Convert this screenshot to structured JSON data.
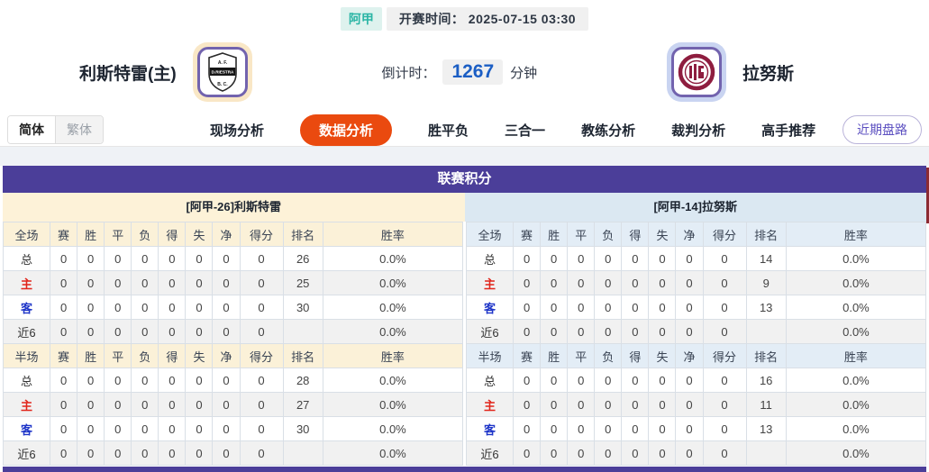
{
  "match_header": {
    "league_badge": "阿甲",
    "kickoff_label": "开赛时间：",
    "kickoff_time": "2025-07-15 03:30",
    "home": {
      "name": "利斯特雷(主)",
      "logo_text": "D.RIESTRA",
      "logo_top": "A.F.",
      "logo_bottom": "B.C."
    },
    "away": {
      "name": "拉努斯"
    },
    "countdown_label": "倒计时：",
    "countdown_value": "1267",
    "countdown_unit": "分钟"
  },
  "nav": {
    "lang_toggle": {
      "simplified": "简体",
      "traditional": "繁体"
    },
    "tabs": [
      {
        "label": "现场分析",
        "active": false
      },
      {
        "label": "数据分析",
        "active": true
      },
      {
        "label": "胜平负",
        "active": false
      },
      {
        "label": "三合一",
        "active": false
      },
      {
        "label": "教练分析",
        "active": false
      },
      {
        "label": "裁判分析",
        "active": false
      },
      {
        "label": "高手推荐",
        "active": false
      }
    ],
    "recent_trend_button": "近期盘路"
  },
  "standings": {
    "title": "联赛积分",
    "left": {
      "subtitle": "[阿甲-26]利斯特雷",
      "sections": [
        {
          "columns": [
            "全场",
            "赛",
            "胜",
            "平",
            "负",
            "得",
            "失",
            "净",
            "得分",
            "排名",
            "胜率"
          ],
          "rows": [
            {
              "label": "总",
              "style": "total",
              "stats": [
                "0",
                "0",
                "0",
                "0",
                "0",
                "0",
                "0",
                "0"
              ],
              "rank": "26",
              "rate": "0.0%"
            },
            {
              "label": "主",
              "style": "home",
              "stats": [
                "0",
                "0",
                "0",
                "0",
                "0",
                "0",
                "0",
                "0"
              ],
              "rank": "25",
              "rate": "0.0%"
            },
            {
              "label": "客",
              "style": "away",
              "stats": [
                "0",
                "0",
                "0",
                "0",
                "0",
                "0",
                "0",
                "0"
              ],
              "rank": "30",
              "rate": "0.0%"
            },
            {
              "label": "近6",
              "style": "recent",
              "stats": [
                "0",
                "0",
                "0",
                "0",
                "0",
                "0",
                "0",
                "0"
              ],
              "rank": "",
              "rate": "0.0%"
            }
          ]
        },
        {
          "columns": [
            "半场",
            "赛",
            "胜",
            "平",
            "负",
            "得",
            "失",
            "净",
            "得分",
            "排名",
            "胜率"
          ],
          "rows": [
            {
              "label": "总",
              "style": "total",
              "stats": [
                "0",
                "0",
                "0",
                "0",
                "0",
                "0",
                "0",
                "0"
              ],
              "rank": "28",
              "rate": "0.0%"
            },
            {
              "label": "主",
              "style": "home",
              "stats": [
                "0",
                "0",
                "0",
                "0",
                "0",
                "0",
                "0",
                "0"
              ],
              "rank": "27",
              "rate": "0.0%"
            },
            {
              "label": "客",
              "style": "away",
              "stats": [
                "0",
                "0",
                "0",
                "0",
                "0",
                "0",
                "0",
                "0"
              ],
              "rank": "30",
              "rate": "0.0%"
            },
            {
              "label": "近6",
              "style": "recent",
              "stats": [
                "0",
                "0",
                "0",
                "0",
                "0",
                "0",
                "0",
                "0"
              ],
              "rank": "",
              "rate": "0.0%"
            }
          ]
        }
      ]
    },
    "right": {
      "subtitle": "[阿甲-14]拉努斯",
      "sections": [
        {
          "columns": [
            "全场",
            "赛",
            "胜",
            "平",
            "负",
            "得",
            "失",
            "净",
            "得分",
            "排名",
            "胜率"
          ],
          "rows": [
            {
              "label": "总",
              "style": "total",
              "stats": [
                "0",
                "0",
                "0",
                "0",
                "0",
                "0",
                "0",
                "0"
              ],
              "rank": "14",
              "rate": "0.0%"
            },
            {
              "label": "主",
              "style": "home",
              "stats": [
                "0",
                "0",
                "0",
                "0",
                "0",
                "0",
                "0",
                "0"
              ],
              "rank": "9",
              "rate": "0.0%"
            },
            {
              "label": "客",
              "style": "away",
              "stats": [
                "0",
                "0",
                "0",
                "0",
                "0",
                "0",
                "0",
                "0"
              ],
              "rank": "13",
              "rate": "0.0%"
            },
            {
              "label": "近6",
              "style": "recent",
              "stats": [
                "0",
                "0",
                "0",
                "0",
                "0",
                "0",
                "0",
                "0"
              ],
              "rank": "",
              "rate": "0.0%"
            }
          ]
        },
        {
          "columns": [
            "半场",
            "赛",
            "胜",
            "平",
            "负",
            "得",
            "失",
            "净",
            "得分",
            "排名",
            "胜率"
          ],
          "rows": [
            {
              "label": "总",
              "style": "total",
              "stats": [
                "0",
                "0",
                "0",
                "0",
                "0",
                "0",
                "0",
                "0"
              ],
              "rank": "16",
              "rate": "0.0%"
            },
            {
              "label": "主",
              "style": "home",
              "stats": [
                "0",
                "0",
                "0",
                "0",
                "0",
                "0",
                "0",
                "0"
              ],
              "rank": "11",
              "rate": "0.0%"
            },
            {
              "label": "客",
              "style": "away",
              "stats": [
                "0",
                "0",
                "0",
                "0",
                "0",
                "0",
                "0",
                "0"
              ],
              "rank": "13",
              "rate": "0.0%"
            },
            {
              "label": "近6",
              "style": "recent",
              "stats": [
                "0",
                "0",
                "0",
                "0",
                "0",
                "0",
                "0",
                "0"
              ],
              "rank": "",
              "rate": "0.0%"
            }
          ]
        }
      ]
    }
  },
  "colors": {
    "accent_purple": "#4b3e99",
    "tab_active_bg": "#ea4a0f",
    "league_badge_text": "#2ab5a5",
    "countdown_number_blue": "#1b5ec4",
    "home_panel_bg": "#fdf2d8",
    "away_panel_bg": "#dbe8f2",
    "home_row_label_red": "#e1251b",
    "away_row_label_blue": "#1d34c8"
  }
}
